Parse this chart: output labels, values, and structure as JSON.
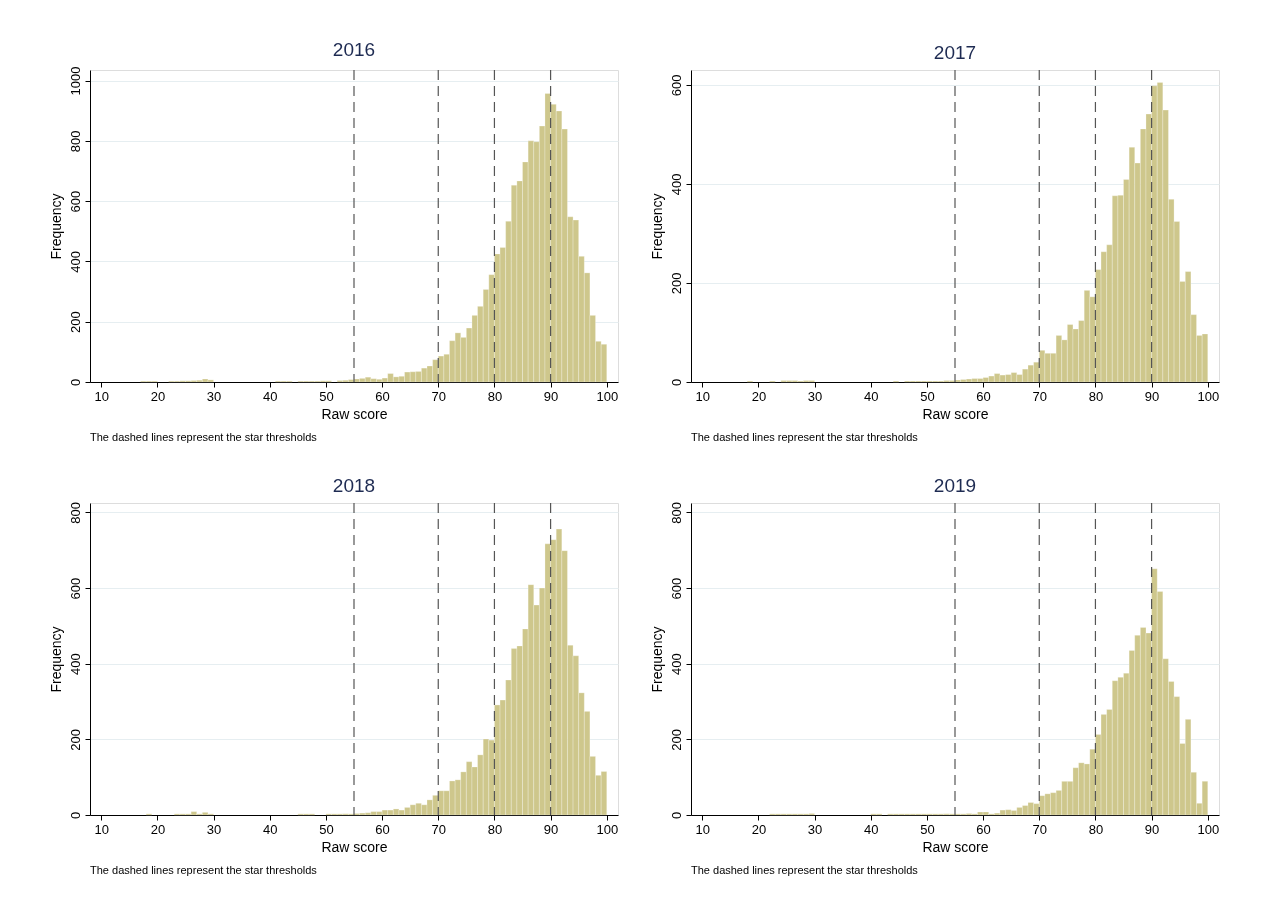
{
  "chart_data": [
    {
      "type": "histogram",
      "title": "2016",
      "xlabel": "Raw score",
      "ylabel": "Frequency",
      "color": "#cec78c",
      "grid": "y",
      "bins": [
        17,
        18,
        19,
        20,
        21,
        22,
        23,
        24,
        25,
        26,
        27,
        28,
        29,
        30,
        31,
        32,
        33,
        34,
        35,
        36,
        37,
        38,
        39,
        40,
        41,
        42,
        43,
        44,
        45,
        46,
        47,
        48,
        49,
        50,
        51,
        52,
        53,
        54,
        55,
        56,
        57,
        58,
        59,
        60,
        61,
        62,
        63,
        64,
        65,
        66,
        67,
        68,
        69,
        70,
        71,
        72,
        73,
        74,
        75,
        76,
        77,
        78,
        79,
        80,
        81,
        82,
        83,
        84,
        85,
        86,
        87,
        88,
        89,
        90,
        91,
        92,
        93,
        94,
        95,
        96,
        97,
        98,
        99,
        100
      ],
      "values": [
        3,
        3,
        3,
        null,
        null,
        3,
        3,
        4,
        4,
        5,
        6,
        10,
        7,
        null,
        null,
        null,
        null,
        null,
        null,
        null,
        null,
        null,
        null,
        null,
        3,
        3,
        3,
        null,
        3,
        3,
        3,
        3,
        4,
        4,
        null,
        5,
        6,
        8,
        10,
        12,
        16,
        11,
        9,
        13,
        28,
        17,
        19,
        33,
        34,
        35,
        46,
        53,
        74,
        86,
        92,
        137,
        163,
        148,
        179,
        221,
        251,
        307,
        356,
        425,
        446,
        533,
        653,
        667,
        730,
        800,
        797,
        849,
        957,
        921,
        899,
        839,
        548,
        537,
        417,
        362,
        221,
        135,
        125
      ],
      "xlim": [
        8,
        102
      ],
      "xticks": [
        10,
        20,
        30,
        40,
        50,
        60,
        70,
        80,
        90,
        100
      ],
      "ylim": [
        0,
        1035
      ],
      "yticks": [
        0,
        200,
        400,
        600,
        800,
        1000
      ],
      "ref_lines": [
        {
          "axis": "x",
          "value": 55,
          "line_style": "dashed",
          "color": "#555555"
        },
        {
          "axis": "x",
          "value": 70,
          "line_style": "dashed",
          "color": "#555555"
        },
        {
          "axis": "x",
          "value": 80,
          "line_style": "dashed",
          "color": "#555555"
        },
        {
          "axis": "x",
          "value": 90,
          "line_style": "dashed",
          "color": "#555555"
        }
      ],
      "annotations": [
        "The dashed lines represent the star thresholds"
      ]
    },
    {
      "type": "histogram",
      "title": "2017",
      "xlabel": "Raw score",
      "ylabel": "Frequency",
      "color": "#cec78c",
      "grid": "y",
      "bins": [
        17,
        18,
        19,
        20,
        21,
        22,
        23,
        24,
        25,
        26,
        27,
        28,
        29,
        30,
        31,
        32,
        33,
        34,
        35,
        36,
        37,
        38,
        39,
        40,
        41,
        42,
        43,
        44,
        45,
        46,
        47,
        48,
        49,
        50,
        51,
        52,
        53,
        54,
        55,
        56,
        57,
        58,
        59,
        60,
        61,
        62,
        63,
        64,
        65,
        66,
        67,
        68,
        69,
        70,
        71,
        72,
        73,
        74,
        75,
        76,
        77,
        78,
        79,
        80,
        81,
        82,
        83,
        84,
        85,
        86,
        87,
        88,
        89,
        90,
        91,
        92,
        93,
        94,
        95,
        96,
        97,
        98,
        99,
        100
      ],
      "values": [
        null,
        2,
        null,
        null,
        null,
        2,
        null,
        3,
        3,
        3,
        2,
        3,
        3,
        null,
        null,
        null,
        null,
        null,
        null,
        null,
        null,
        null,
        null,
        null,
        null,
        null,
        null,
        2,
        null,
        2,
        2,
        2,
        2,
        2,
        2,
        2,
        3,
        3,
        4,
        5,
        6,
        7,
        7,
        9,
        12,
        17,
        14,
        15,
        19,
        15,
        26,
        34,
        40,
        64,
        58,
        58,
        94,
        85,
        116,
        107,
        124,
        185,
        172,
        227,
        263,
        277,
        376,
        377,
        409,
        474,
        442,
        511,
        541,
        598,
        605,
        549,
        369,
        324,
        203,
        223,
        136,
        94,
        97
      ],
      "xlim": [
        8,
        102
      ],
      "xticks": [
        10,
        20,
        30,
        40,
        50,
        60,
        70,
        80,
        90,
        100
      ],
      "ylim": [
        0,
        630
      ],
      "yticks": [
        0,
        200,
        400,
        600
      ],
      "ref_lines": [
        {
          "axis": "x",
          "value": 55,
          "line_style": "dashed",
          "color": "#555555"
        },
        {
          "axis": "x",
          "value": 70,
          "line_style": "dashed",
          "color": "#555555"
        },
        {
          "axis": "x",
          "value": 80,
          "line_style": "dashed",
          "color": "#555555"
        },
        {
          "axis": "x",
          "value": 90,
          "line_style": "dashed",
          "color": "#555555"
        }
      ],
      "annotations": [
        "The dashed lines represent the star thresholds"
      ]
    },
    {
      "type": "histogram",
      "title": "2018",
      "xlabel": "Raw score",
      "ylabel": "Frequency",
      "color": "#cec78c",
      "grid": "y",
      "bins": [
        17,
        18,
        19,
        20,
        21,
        22,
        23,
        24,
        25,
        26,
        27,
        28,
        29,
        30,
        31,
        32,
        33,
        34,
        35,
        36,
        37,
        38,
        39,
        40,
        41,
        42,
        43,
        44,
        45,
        46,
        47,
        48,
        49,
        50,
        51,
        52,
        53,
        54,
        55,
        56,
        57,
        58,
        59,
        60,
        61,
        62,
        63,
        64,
        65,
        66,
        67,
        68,
        69,
        70,
        71,
        72,
        73,
        74,
        75,
        76,
        77,
        78,
        79,
        80,
        81,
        82,
        83,
        84,
        85,
        86,
        87,
        88,
        89,
        90,
        91,
        92,
        93,
        94,
        95,
        96,
        97,
        98,
        99,
        100
      ],
      "values": [
        null,
        3,
        null,
        null,
        null,
        null,
        3,
        3,
        3,
        9,
        3,
        7,
        3,
        null,
        null,
        null,
        null,
        null,
        null,
        null,
        null,
        null,
        null,
        null,
        null,
        null,
        null,
        null,
        3,
        3,
        3,
        null,
        null,
        3,
        3,
        3,
        3,
        3,
        4,
        5,
        6,
        9,
        9,
        13,
        13,
        16,
        13,
        20,
        27,
        31,
        27,
        40,
        52,
        64,
        64,
        90,
        93,
        114,
        141,
        127,
        159,
        201,
        198,
        291,
        304,
        357,
        440,
        447,
        492,
        609,
        555,
        600,
        717,
        728,
        756,
        699,
        449,
        421,
        323,
        274,
        155,
        105,
        115
      ],
      "xlim": [
        8,
        102
      ],
      "xticks": [
        10,
        20,
        30,
        40,
        50,
        60,
        70,
        80,
        90,
        100
      ],
      "ylim": [
        0,
        825
      ],
      "yticks": [
        0,
        200,
        400,
        600,
        800
      ],
      "ref_lines": [
        {
          "axis": "x",
          "value": 55,
          "line_style": "dashed",
          "color": "#555555"
        },
        {
          "axis": "x",
          "value": 70,
          "line_style": "dashed",
          "color": "#555555"
        },
        {
          "axis": "x",
          "value": 80,
          "line_style": "dashed",
          "color": "#555555"
        },
        {
          "axis": "x",
          "value": 90,
          "line_style": "dashed",
          "color": "#555555"
        }
      ],
      "annotations": [
        "The dashed lines represent the star thresholds"
      ]
    },
    {
      "type": "histogram",
      "title": "2019",
      "xlabel": "Raw score",
      "ylabel": "Frequency",
      "color": "#cec78c",
      "grid": "y",
      "bins": [
        17,
        18,
        19,
        20,
        21,
        22,
        23,
        24,
        25,
        26,
        27,
        28,
        29,
        30,
        31,
        32,
        33,
        34,
        35,
        36,
        37,
        38,
        39,
        40,
        41,
        42,
        43,
        44,
        45,
        46,
        47,
        48,
        49,
        50,
        51,
        52,
        53,
        54,
        55,
        56,
        57,
        58,
        59,
        60,
        61,
        62,
        63,
        64,
        65,
        66,
        67,
        68,
        69,
        70,
        71,
        72,
        73,
        74,
        75,
        76,
        77,
        78,
        79,
        80,
        81,
        82,
        83,
        84,
        85,
        86,
        87,
        88,
        89,
        90,
        91,
        92,
        93,
        94,
        95,
        96,
        97,
        98,
        99,
        100
      ],
      "values": [
        null,
        null,
        null,
        null,
        null,
        3,
        3,
        3,
        3,
        3,
        3,
        3,
        4,
        null,
        null,
        null,
        null,
        null,
        null,
        null,
        null,
        null,
        null,
        3,
        3,
        null,
        3,
        3,
        3,
        3,
        3,
        3,
        3,
        3,
        3,
        3,
        3,
        3,
        3,
        3,
        4,
        3,
        8,
        8,
        3,
        5,
        13,
        14,
        12,
        20,
        25,
        33,
        30,
        51,
        56,
        59,
        65,
        89,
        89,
        125,
        138,
        135,
        174,
        213,
        266,
        279,
        355,
        364,
        375,
        435,
        475,
        496,
        481,
        651,
        591,
        413,
        353,
        313,
        189,
        253,
        113,
        31,
        89
      ],
      "xlim": [
        8,
        102
      ],
      "xticks": [
        10,
        20,
        30,
        40,
        50,
        60,
        70,
        80,
        90,
        100
      ],
      "ylim": [
        0,
        825
      ],
      "yticks": [
        0,
        200,
        400,
        600,
        800
      ],
      "ref_lines": [
        {
          "axis": "x",
          "value": 55,
          "line_style": "dashed",
          "color": "#555555"
        },
        {
          "axis": "x",
          "value": 70,
          "line_style": "dashed",
          "color": "#555555"
        },
        {
          "axis": "x",
          "value": 80,
          "line_style": "dashed",
          "color": "#555555"
        },
        {
          "axis": "x",
          "value": 90,
          "line_style": "dashed",
          "color": "#555555"
        }
      ],
      "annotations": [
        "The dashed lines represent the star thresholds"
      ]
    }
  ]
}
